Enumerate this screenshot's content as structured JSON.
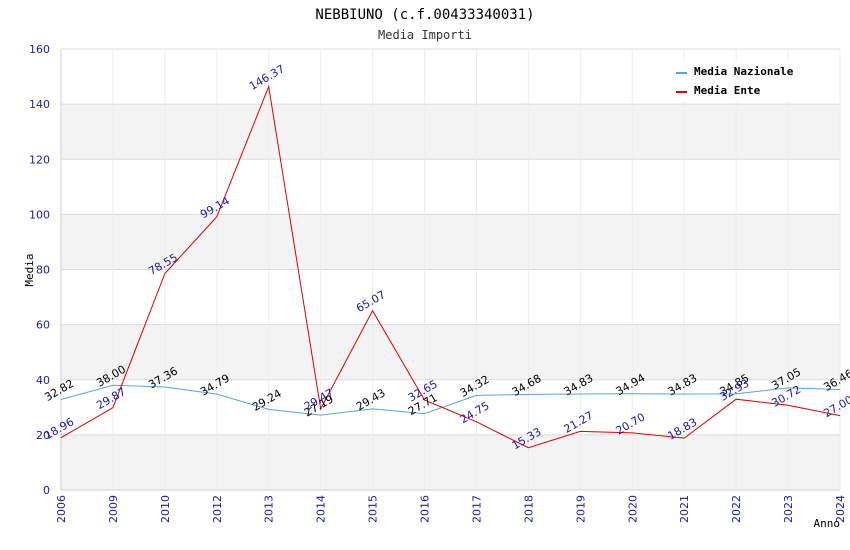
{
  "header": {
    "title": "NEBBIUNO (c.f.00433340031)",
    "subtitle": "Media Importi"
  },
  "chart_data": {
    "type": "line",
    "title": "NEBBIUNO (c.f.00433340031)",
    "subtitle": "Media Importi",
    "xlabel": "Anno",
    "ylabel": "Media",
    "ylim": [
      0,
      160
    ],
    "yticks": [
      0,
      20,
      40,
      60,
      80,
      100,
      120,
      140,
      160
    ],
    "grid": true,
    "legend_position": "top-right",
    "categories": [
      "2006",
      "2009",
      "2010",
      "2012",
      "2013",
      "2014",
      "2015",
      "2016",
      "2017",
      "2018",
      "2019",
      "2020",
      "2021",
      "2022",
      "2023",
      "2024"
    ],
    "series": [
      {
        "name": "Media Nazionale",
        "color": "#5aa0e6",
        "label_color": "#000000",
        "values": [
          32.82,
          38.0,
          37.36,
          34.79,
          29.24,
          27.19,
          29.43,
          27.71,
          34.32,
          34.68,
          34.83,
          34.94,
          34.83,
          34.85,
          37.05,
          36.46
        ],
        "labels": [
          "32.82",
          "38.00",
          "37.36",
          "34.79",
          "29.24",
          "27.19",
          "29.43",
          "27.71",
          "34.32",
          "34.68",
          "34.83",
          "34.94",
          "34.83",
          "34.85",
          "37.05",
          "36.46"
        ]
      },
      {
        "name": "Media Ente",
        "color": "#e00000",
        "label_color": "#1a1aa6",
        "values": [
          18.96,
          29.87,
          78.55,
          99.14,
          146.37,
          29.47,
          65.07,
          32.65,
          24.75,
          15.33,
          21.27,
          20.7,
          18.83,
          32.93,
          30.72,
          27.0
        ],
        "labels": [
          "18.96",
          "29.87",
          "78.55",
          "99.14",
          "146.37",
          "29.47",
          "65.07",
          "32.65",
          "24.75",
          "15.33",
          "21.27",
          "20.70",
          "18.83",
          "32.93",
          "30.72",
          "27.00"
        ]
      }
    ]
  }
}
